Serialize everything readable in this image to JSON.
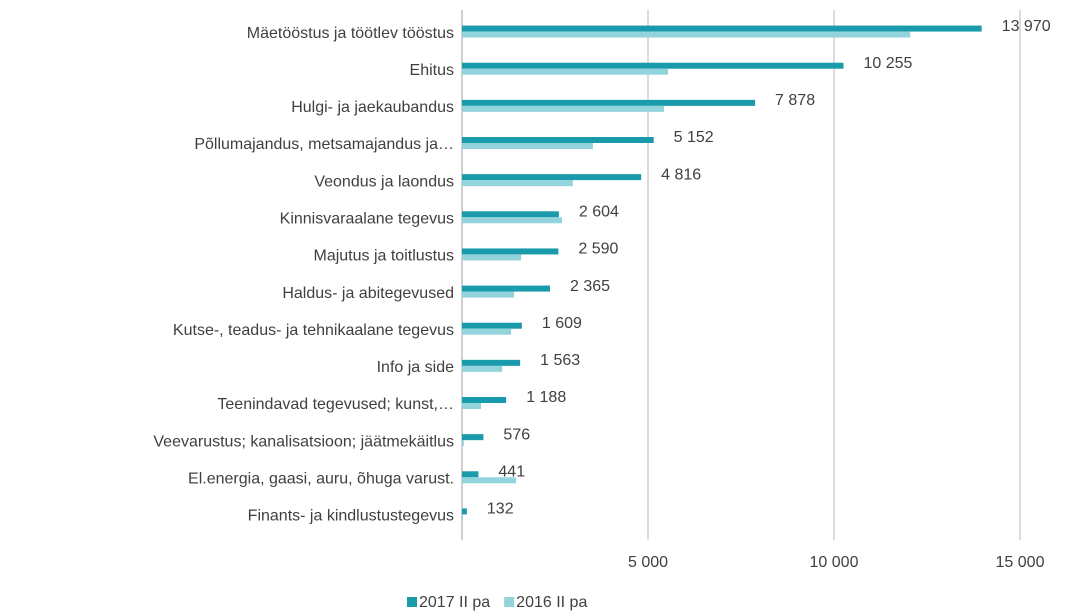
{
  "chart_data": {
    "type": "hbar",
    "categories": [
      "Mäetööstus ja töötlev tööstus",
      "Ehitus",
      "Hulgi- ja jaekaubandus",
      "Põllumajandus, metsamajandus ja…",
      "Veondus ja laondus",
      "Kinnisvaraalane tegevus",
      "Majutus ja toitlustus",
      "Haldus- ja abitegevused",
      "Kutse-, teadus- ja tehnikaalane tegevus",
      "Info ja side",
      "Teenindavad tegevused; kunst,…",
      "Veevarustus; kanalisatsioon; jäätmekäitlus",
      "El.energia, gaasi, auru, õhuga varust.",
      "Finants- ja kindlustustegevus"
    ],
    "series": [
      {
        "name": "2017 II pa",
        "color": "#1a9bab",
        "values": [
          13970,
          10255,
          7878,
          5152,
          4816,
          2604,
          2590,
          2365,
          1609,
          1563,
          1188,
          576,
          441,
          132
        ],
        "value_labels": [
          "13 970",
          "10 255",
          "7 878",
          "5 152",
          "4 816",
          "2 604",
          "2 590",
          "2 365",
          "1 609",
          "1 563",
          "1 188",
          "576",
          "441",
          "132"
        ]
      },
      {
        "name": "2016 II pa",
        "color": "#93d3dc",
        "values": [
          12050,
          5540,
          5430,
          3520,
          2980,
          2690,
          1590,
          1400,
          1320,
          1080,
          510,
          50,
          1450,
          20
        ]
      }
    ],
    "xlim": [
      0,
      15000
    ],
    "xticks": [
      {
        "value": 5000,
        "label": "5 000"
      },
      {
        "value": 10000,
        "label": "10 000"
      },
      {
        "value": 15000,
        "label": "15 000"
      }
    ],
    "grid": true,
    "legend": "bottom"
  }
}
